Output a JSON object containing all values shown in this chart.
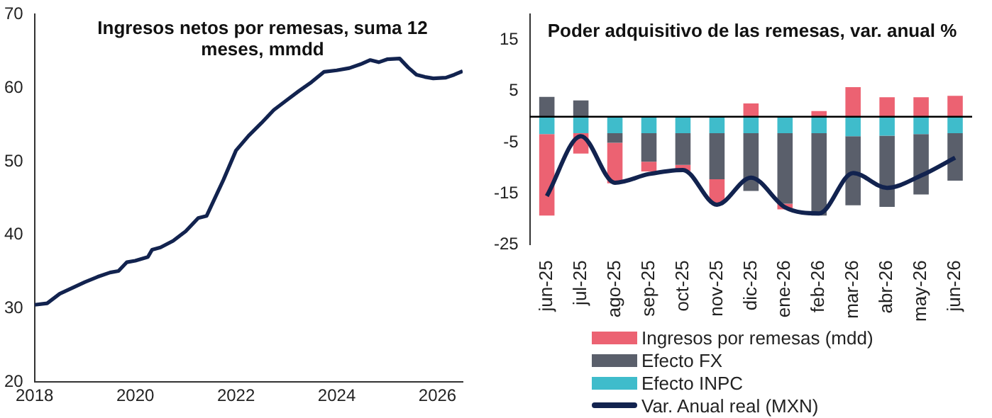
{
  "chart_data": [
    {
      "type": "line",
      "title": "Ingresos netos por remesas, suma 12 meses, mmdd",
      "x": [
        "2018-01",
        "2018-04",
        "2018-07",
        "2018-10",
        "2019-01",
        "2019-04",
        "2019-07",
        "2019-09",
        "2019-11",
        "2020-01",
        "2020-04",
        "2020-05",
        "2020-07",
        "2020-10",
        "2021-01",
        "2021-04",
        "2021-06",
        "2021-10",
        "2022-01",
        "2022-04",
        "2022-07",
        "2022-10",
        "2023-01",
        "2023-04",
        "2023-07",
        "2023-10",
        "2024-01",
        "2024-04",
        "2024-07",
        "2024-09",
        "2024-11",
        "2025-01",
        "2025-04",
        "2025-06",
        "2025-08",
        "2025-10",
        "2025-12",
        "2026-03",
        "2026-05",
        "2026-07"
      ],
      "series": [
        {
          "color": "#12234f",
          "values": [
            30.5,
            30.7,
            32.0,
            32.8,
            33.6,
            34.3,
            34.9,
            35.1,
            36.3,
            36.5,
            37.0,
            38.0,
            38.3,
            39.2,
            40.5,
            42.3,
            42.6,
            47.5,
            51.5,
            53.5,
            55.2,
            57.0,
            58.3,
            59.6,
            60.8,
            62.2,
            62.4,
            62.7,
            63.3,
            63.8,
            63.5,
            63.9,
            64.0,
            62.8,
            61.8,
            61.5,
            61.3,
            61.4,
            61.8,
            62.3
          ]
        }
      ],
      "xlim": [
        "2018-01",
        "2026-07"
      ],
      "xticks": [
        "2018",
        "2020",
        "2022",
        "2024",
        "2026"
      ],
      "ylim": [
        20,
        70
      ],
      "yticks": [
        20,
        30,
        40,
        50,
        60,
        70
      ],
      "grid": false,
      "legend": false,
      "marker": "none",
      "line_style": "solid"
    },
    {
      "type": "bar",
      "title": "Poder adquisitivo de las remesas, var. anual %",
      "stacked": true,
      "categories": [
        "jun-25",
        "jul-25",
        "ago-25",
        "sep-25",
        "oct-25",
        "nov-25",
        "dic-25",
        "ene-26",
        "feb-26",
        "mar-26",
        "abr-26",
        "may-26",
        "jun-26"
      ],
      "series": [
        {
          "name": "Efecto INPC",
          "color": "#3fbccb",
          "values": [
            -3.4,
            -3.2,
            -3.2,
            -3.2,
            -3.2,
            -3.2,
            -3.2,
            -3.2,
            -3.2,
            -3.8,
            -3.7,
            -3.4,
            -3.2
          ]
        },
        {
          "name": "Efecto FX",
          "color": "#5a5f6b",
          "values": [
            3.9,
            3.2,
            -1.9,
            -5.6,
            -6.2,
            -9.0,
            -11.3,
            -13.8,
            -16.1,
            -13.5,
            -13.9,
            -11.8,
            -9.3
          ]
        },
        {
          "name": "Ingresos por remesas (mdd)",
          "color": "#ec6272",
          "values": [
            -15.9,
            -4.0,
            -7.9,
            -1.9,
            -1.2,
            -4.7,
            2.6,
            -1.1,
            1.1,
            5.8,
            3.8,
            3.8,
            4.1
          ]
        },
        {
          "name": "Var. Anual real (MXN)",
          "type": "line",
          "color": "#12234f",
          "values": [
            -15.5,
            -3.8,
            -12.9,
            -11.2,
            -10.4,
            -17.2,
            -11.9,
            -17.7,
            -18.9,
            -11.0,
            -13.9,
            -11.5,
            -8.0
          ]
        }
      ],
      "ylim": [
        -25,
        20
      ],
      "yticks": [
        -25,
        -15,
        -5,
        5,
        15
      ],
      "ref_lines": [
        {
          "axis": "y",
          "value": 0,
          "color": "#000000"
        }
      ],
      "grid": false,
      "legend": "bottom",
      "marker": "none"
    }
  ]
}
